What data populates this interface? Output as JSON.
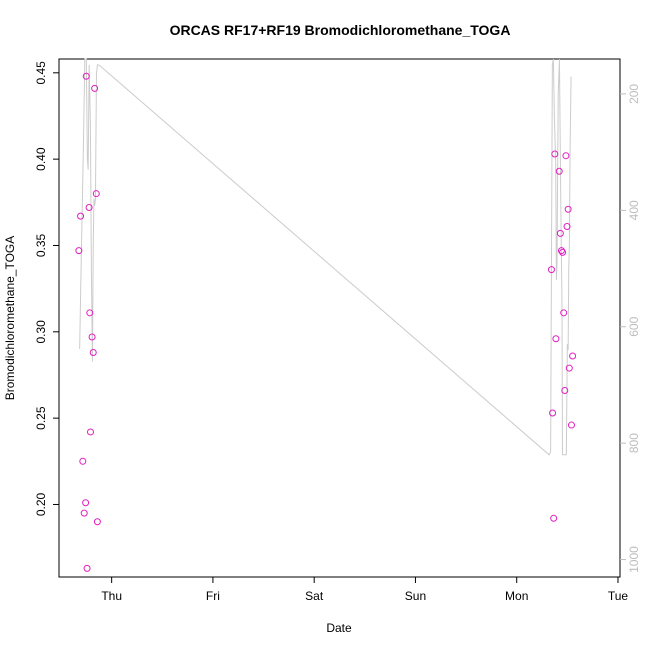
{
  "chart_data": {
    "type": "scatter",
    "title": "ORCAS RF17+RF19 Bromodichloromethane_TOGA",
    "xlabel": "Date",
    "ylabel": "Bromodichloromethane_TOGA",
    "x_unit": "days",
    "x_ticks": [
      {
        "label": "Thu",
        "value": 1
      },
      {
        "label": "Fri",
        "value": 2
      },
      {
        "label": "Sat",
        "value": 3
      },
      {
        "label": "Sun",
        "value": 4
      },
      {
        "label": "Mon",
        "value": 5
      },
      {
        "label": "Tue",
        "value": 6
      }
    ],
    "xlim": [
      0.48,
      6.02
    ],
    "ylim": [
      0.158,
      0.458
    ],
    "y_ticks": [
      0.2,
      0.25,
      0.3,
      0.35,
      0.4,
      0.45
    ],
    "y_tick_labels": [
      "0.20",
      "0.25",
      "0.30",
      "0.35",
      "0.40",
      "0.45"
    ],
    "y2_ticks": [
      200,
      400,
      600,
      800,
      1000
    ],
    "y2_tick_labels": [
      "200",
      "400",
      "600",
      "800",
      "1000"
    ],
    "y2lim": [
      1030,
      140
    ],
    "grid": false,
    "series": [
      {
        "kind": "points",
        "color": "#e020c0",
        "points": [
          [
            0.676,
            0.347
          ],
          [
            0.693,
            0.367
          ],
          [
            0.715,
            0.225
          ],
          [
            0.729,
            0.195
          ],
          [
            0.743,
            0.201
          ],
          [
            0.749,
            0.448
          ],
          [
            0.757,
            0.163
          ],
          [
            0.777,
            0.372
          ],
          [
            0.784,
            0.311
          ],
          [
            0.791,
            0.242
          ],
          [
            0.807,
            0.297
          ],
          [
            0.818,
            0.288
          ],
          [
            0.832,
            0.441
          ],
          [
            0.848,
            0.38
          ],
          [
            0.859,
            0.19
          ],
          [
            5.343,
            0.336
          ],
          [
            5.354,
            0.253
          ],
          [
            5.365,
            0.192
          ],
          [
            5.376,
            0.403
          ],
          [
            5.387,
            0.296
          ],
          [
            5.42,
            0.393
          ],
          [
            5.431,
            0.357
          ],
          [
            5.442,
            0.347
          ],
          [
            5.453,
            0.346
          ],
          [
            5.464,
            0.311
          ],
          [
            5.475,
            0.266
          ],
          [
            5.486,
            0.402
          ],
          [
            5.497,
            0.361
          ],
          [
            5.508,
            0.371
          ],
          [
            5.519,
            0.279
          ],
          [
            5.541,
            0.246
          ],
          [
            5.552,
            0.286
          ]
        ]
      },
      {
        "kind": "altitude",
        "color": "#cccccc",
        "axis": "right",
        "points": [
          [
            0.684,
            638
          ],
          [
            0.7,
            480
          ],
          [
            0.72,
            300
          ],
          [
            0.735,
            80
          ],
          [
            0.75,
            120
          ],
          [
            0.76,
            310
          ],
          [
            0.768,
            330
          ],
          [
            0.778,
            150
          ],
          [
            0.79,
            250
          ],
          [
            0.8,
            505
          ],
          [
            0.81,
            660
          ],
          [
            0.818,
            460
          ],
          [
            0.825,
            380
          ],
          [
            0.832,
            392
          ],
          [
            0.84,
            380
          ],
          [
            0.85,
            165
          ],
          [
            0.86,
            150
          ],
          [
            0.868,
            150
          ],
          [
            0.88,
            151
          ],
          [
            5.32,
            820
          ],
          [
            5.335,
            815
          ],
          [
            5.345,
            420
          ],
          [
            5.352,
            150
          ],
          [
            5.362,
            140
          ],
          [
            5.372,
            240
          ],
          [
            5.385,
            320
          ],
          [
            5.392,
            520
          ],
          [
            5.398,
            490
          ],
          [
            5.41,
            200
          ],
          [
            5.422,
            120
          ],
          [
            5.436,
            400
          ],
          [
            5.447,
            560
          ],
          [
            5.452,
            820
          ],
          [
            5.49,
            820
          ],
          [
            5.5,
            630
          ],
          [
            5.508,
            640
          ],
          [
            5.514,
            500
          ],
          [
            5.52,
            460
          ],
          [
            5.528,
            280
          ],
          [
            5.537,
            170
          ]
        ]
      }
    ]
  }
}
